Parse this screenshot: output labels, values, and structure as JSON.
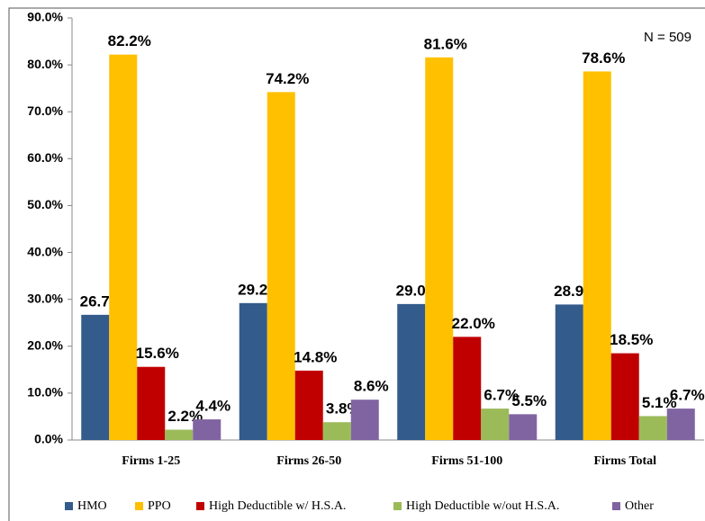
{
  "chart_data": {
    "type": "bar",
    "annotation": "N = 509",
    "categories": [
      "Firms 1-25",
      "Firms 26-50",
      "Firms 51-100",
      "Firms Total"
    ],
    "series": [
      {
        "name": "HMO",
        "color": "#335b8b",
        "values": [
          26.7,
          29.2,
          29.0,
          28.9
        ],
        "value_labels": [
          "26.7%",
          "29.2%",
          "29.0%",
          "28.9%"
        ]
      },
      {
        "name": "PPO",
        "color": "#ffc000",
        "values": [
          82.2,
          74.2,
          81.6,
          78.6
        ],
        "value_labels": [
          "82.2%",
          "74.2%",
          "81.6%",
          "78.6%"
        ]
      },
      {
        "name": "High Deductible w/ H.S.A.",
        "color": "#c00000",
        "values": [
          15.6,
          14.8,
          22.0,
          18.5
        ],
        "value_labels": [
          "15.6%",
          "14.8%",
          "22.0%",
          "18.5%"
        ]
      },
      {
        "name": "High Deductible w/out H.S.A.",
        "color": "#9bbb59",
        "values": [
          2.2,
          3.8,
          6.7,
          5.1
        ],
        "value_labels": [
          "2.2%",
          "3.8%",
          "6.7%",
          "5.1%"
        ]
      },
      {
        "name": "Other",
        "color": "#8064a2",
        "values": [
          4.4,
          8.6,
          5.5,
          6.7
        ],
        "value_labels": [
          "4.4%",
          "8.6%",
          "5.5%",
          "6.7%"
        ]
      }
    ],
    "ylim": [
      0,
      90
    ],
    "yticks": [
      {
        "value": 0,
        "label": "0.0%"
      },
      {
        "value": 10,
        "label": "10.0%"
      },
      {
        "value": 20,
        "label": "20.0%"
      },
      {
        "value": 30,
        "label": "30.0%"
      },
      {
        "value": 40,
        "label": "40.0%"
      },
      {
        "value": 50,
        "label": "50.0%"
      },
      {
        "value": 60,
        "label": "60.0%"
      },
      {
        "value": 70,
        "label": "70.0%"
      },
      {
        "value": 80,
        "label": "80.0%"
      },
      {
        "value": 90,
        "label": "90.0%"
      }
    ],
    "grid": false
  }
}
